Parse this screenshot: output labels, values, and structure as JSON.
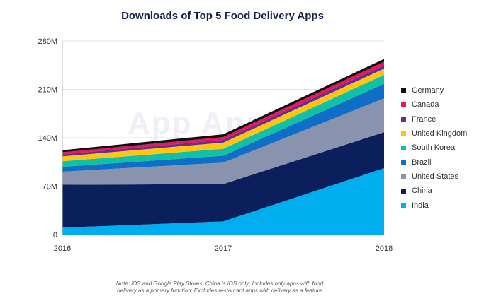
{
  "title": "Downloads of Top 5 Food Delivery Apps",
  "watermark": "App Annie",
  "note": {
    "line1": "Note: iOS and Google Play Stores; China is iOS only; Includes only apps with food",
    "line2": "delivery as a primary function; Excludes restaurant apps with delivery as a feature"
  },
  "chart_data": {
    "type": "area",
    "stacked": true,
    "title": "Downloads of Top 5 Food Delivery Apps",
    "xlabel": "",
    "ylabel": "",
    "x": [
      "2016",
      "2017",
      "2018"
    ],
    "yticks": [
      "0",
      "70M",
      "140M",
      "210M",
      "280M"
    ],
    "ylim": [
      0,
      280
    ],
    "y_unit": "M",
    "legend_position": "right",
    "series": [
      {
        "name": "India",
        "color": "#00aeef",
        "values": [
          10,
          19,
          96
        ]
      },
      {
        "name": "China",
        "color": "#0b1f5c",
        "values": [
          62,
          54,
          52
        ]
      },
      {
        "name": "United States",
        "color": "#8a93ad",
        "values": [
          19,
          31,
          49
        ]
      },
      {
        "name": "Brazil",
        "color": "#0f6fc6",
        "values": [
          7,
          10,
          21
        ]
      },
      {
        "name": "South Korea",
        "color": "#10c1a8",
        "values": [
          8,
          10,
          13
        ]
      },
      {
        "name": "United Kingdom",
        "color": "#ffc414",
        "values": [
          7,
          9,
          9
        ]
      },
      {
        "name": "France",
        "color": "#6a2c91",
        "values": [
          3,
          4,
          5
        ]
      },
      {
        "name": "Canada",
        "color": "#e8175d",
        "values": [
          3,
          4,
          5
        ]
      },
      {
        "name": "Germany",
        "color": "#111111",
        "values": [
          3,
          4,
          4
        ]
      }
    ]
  }
}
